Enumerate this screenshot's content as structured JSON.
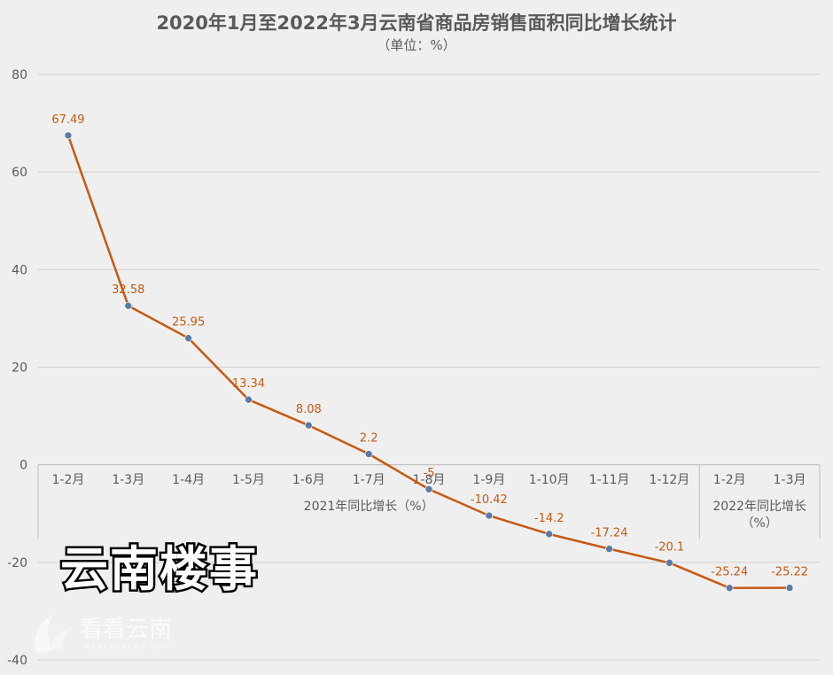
{
  "chart_data": {
    "type": "line",
    "title": "2020年1月至2022年3月云南省商品房销售面积同比增长统计",
    "subtitle": "（单位：%）",
    "ylim": [
      -40,
      80
    ],
    "yticks": [
      80,
      60,
      40,
      20,
      0,
      -20,
      -40
    ],
    "grid": true,
    "line_color": "#c55a11",
    "marker_color": "#5b7ba6",
    "categories": [
      "1-2月",
      "1-3月",
      "1-4月",
      "1-5月",
      "1-6月",
      "1-7月",
      "1-8月",
      "1-9月",
      "1-10月",
      "1-11月",
      "1-12月",
      "1-2月",
      "1-3月"
    ],
    "groups": [
      {
        "label": "2021年同比增长（%）",
        "count": 11
      },
      {
        "label": "2022年同比增长（%）",
        "count": 2
      }
    ],
    "series": [
      {
        "values": [
          67.49,
          32.58,
          25.95,
          13.34,
          8.08,
          2.2,
          -5,
          -10.42,
          -14.2,
          -17.24,
          -20.1,
          -25.24,
          -25.22
        ],
        "labels": [
          "67.49",
          "32.58",
          "25.95",
          "13.34",
          "8.08",
          "2.2",
          "-5",
          "-10.42",
          "-14.2",
          "-17.24",
          "-20.1",
          "-25.24",
          "-25.22"
        ]
      }
    ]
  },
  "brand": {
    "text": "云南楼事"
  },
  "watermark": {
    "text": "看看云南",
    "sub": "KANKANNEWS.COM"
  }
}
